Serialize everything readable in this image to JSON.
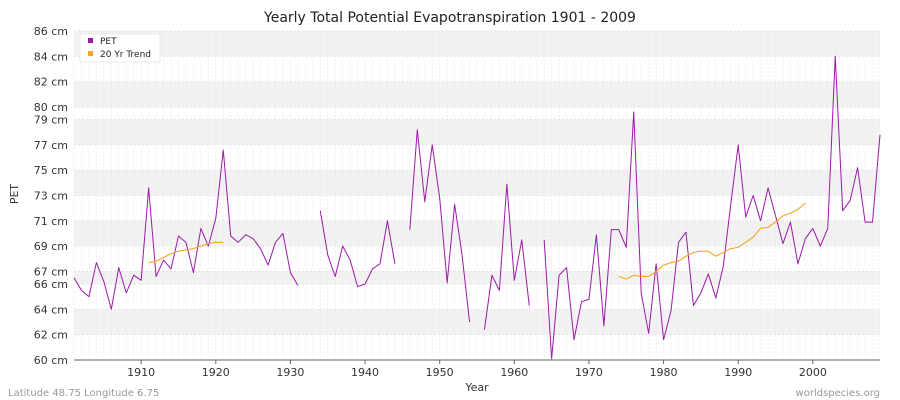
{
  "chart_data": {
    "type": "line",
    "title": "Yearly Total Potential Evapotranspiration 1901 - 2009",
    "xlabel": "Year",
    "ylabel": "PET",
    "xlim": [
      1901,
      2009
    ],
    "ylim": [
      60,
      86
    ],
    "x_ticks": [
      1910,
      1920,
      1930,
      1940,
      1950,
      1960,
      1970,
      1980,
      1990,
      2000
    ],
    "y_ticks": [
      {
        "v": 60,
        "label": "60 cm"
      },
      {
        "v": 62,
        "label": "62 cm"
      },
      {
        "v": 64,
        "label": "64 cm"
      },
      {
        "v": 66,
        "label": "66 cm"
      },
      {
        "v": 67,
        "label": "67 cm"
      },
      {
        "v": 69,
        "label": "69 cm"
      },
      {
        "v": 71,
        "label": "71 cm"
      },
      {
        "v": 73,
        "label": "73 cm"
      },
      {
        "v": 75,
        "label": "75 cm"
      },
      {
        "v": 77,
        "label": "77 cm"
      },
      {
        "v": 79,
        "label": "79 cm"
      },
      {
        "v": 80,
        "label": "80 cm"
      },
      {
        "v": 82,
        "label": "82 cm"
      },
      {
        "v": 84,
        "label": "84 cm"
      },
      {
        "v": 86,
        "label": "86 cm"
      }
    ],
    "legend": [
      {
        "name": "PET",
        "color": "#9b1aa8"
      },
      {
        "name": "20 Yr Trend",
        "color": "#f5a623"
      }
    ],
    "series": [
      {
        "name": "PET",
        "color": "#9b1aa8",
        "points": [
          [
            1901,
            66.5
          ],
          [
            1902,
            65.5
          ],
          [
            1903,
            65.0
          ],
          [
            1904,
            67.7
          ],
          [
            1905,
            66.2
          ],
          [
            1906,
            64.0
          ],
          [
            1907,
            67.3
          ],
          [
            1908,
            65.3
          ],
          [
            1909,
            66.7
          ],
          [
            1910,
            66.3
          ],
          [
            1911,
            73.6
          ],
          [
            1912,
            66.6
          ],
          [
            1913,
            67.9
          ],
          [
            1914,
            67.2
          ],
          [
            1915,
            69.8
          ],
          [
            1916,
            69.3
          ],
          [
            1917,
            66.9
          ],
          [
            1918,
            70.4
          ],
          [
            1919,
            69.0
          ],
          [
            1920,
            71.2
          ],
          [
            1921,
            76.6
          ],
          [
            1922,
            69.8
          ],
          [
            1923,
            69.3
          ],
          [
            1924,
            69.9
          ],
          [
            1925,
            69.6
          ],
          [
            1926,
            68.8
          ],
          [
            1927,
            67.5
          ],
          [
            1928,
            69.3
          ],
          [
            1929,
            70.0
          ],
          [
            1930,
            66.9
          ],
          [
            1931,
            65.9
          ],
          [
            1932,
            null
          ],
          [
            1933,
            null
          ],
          [
            1934,
            71.8
          ],
          [
            1935,
            68.3
          ],
          [
            1936,
            66.6
          ],
          [
            1937,
            69.0
          ],
          [
            1938,
            67.9
          ],
          [
            1939,
            65.8
          ],
          [
            1940,
            66.0
          ],
          [
            1941,
            67.2
          ],
          [
            1942,
            67.6
          ],
          [
            1943,
            71.0
          ],
          [
            1944,
            67.6
          ],
          [
            1945,
            null
          ],
          [
            1946,
            70.3
          ],
          [
            1947,
            78.2
          ],
          [
            1948,
            72.5
          ],
          [
            1949,
            77.0
          ],
          [
            1950,
            72.8
          ],
          [
            1951,
            66.1
          ],
          [
            1952,
            72.3
          ],
          [
            1953,
            68.3
          ],
          [
            1954,
            63.0
          ],
          [
            1955,
            null
          ],
          [
            1956,
            62.4
          ],
          [
            1957,
            66.7
          ],
          [
            1958,
            65.5
          ],
          [
            1959,
            73.9
          ],
          [
            1960,
            66.3
          ],
          [
            1961,
            69.5
          ],
          [
            1962,
            64.3
          ],
          [
            1963,
            null
          ],
          [
            1964,
            69.5
          ],
          [
            1965,
            60.1
          ],
          [
            1966,
            66.7
          ],
          [
            1967,
            67.3
          ],
          [
            1968,
            61.6
          ],
          [
            1969,
            64.6
          ],
          [
            1970,
            64.8
          ],
          [
            1971,
            69.9
          ],
          [
            1972,
            62.7
          ],
          [
            1973,
            70.3
          ],
          [
            1974,
            70.3
          ],
          [
            1975,
            68.9
          ],
          [
            1976,
            79.6
          ],
          [
            1977,
            65.3
          ],
          [
            1978,
            62.1
          ],
          [
            1979,
            67.6
          ],
          [
            1980,
            61.6
          ],
          [
            1981,
            63.9
          ],
          [
            1982,
            69.3
          ],
          [
            1983,
            70.1
          ],
          [
            1984,
            64.3
          ],
          [
            1985,
            65.3
          ],
          [
            1986,
            66.8
          ],
          [
            1987,
            64.9
          ],
          [
            1988,
            67.4
          ],
          [
            1989,
            72.3
          ],
          [
            1990,
            77.0
          ],
          [
            1991,
            71.3
          ],
          [
            1992,
            73.0
          ],
          [
            1993,
            71.0
          ],
          [
            1994,
            73.6
          ],
          [
            1995,
            71.4
          ],
          [
            1996,
            69.2
          ],
          [
            1997,
            70.9
          ],
          [
            1998,
            67.6
          ],
          [
            1999,
            69.6
          ],
          [
            2000,
            70.4
          ],
          [
            2001,
            69.0
          ],
          [
            2002,
            70.4
          ],
          [
            2003,
            84.0
          ],
          [
            2004,
            71.8
          ],
          [
            2005,
            72.6
          ],
          [
            2006,
            75.2
          ],
          [
            2007,
            70.9
          ],
          [
            2008,
            70.9
          ],
          [
            2009,
            77.8
          ]
        ]
      },
      {
        "name": "20 Yr Trend",
        "color": "#f5a623",
        "points": [
          [
            1911,
            67.7
          ],
          [
            1912,
            67.8
          ],
          [
            1913,
            68.1
          ],
          [
            1914,
            68.4
          ],
          [
            1915,
            68.6
          ],
          [
            1916,
            68.7
          ],
          [
            1917,
            68.8
          ],
          [
            1918,
            69.0
          ],
          [
            1919,
            69.2
          ],
          [
            1920,
            69.3
          ],
          [
            1921,
            69.3
          ],
          [
            1974,
            66.6
          ],
          [
            1975,
            66.4
          ],
          [
            1976,
            66.7
          ],
          [
            1977,
            66.6
          ],
          [
            1978,
            66.6
          ],
          [
            1979,
            67.0
          ],
          [
            1980,
            67.5
          ],
          [
            1981,
            67.7
          ],
          [
            1982,
            67.8
          ],
          [
            1983,
            68.2
          ],
          [
            1984,
            68.5
          ],
          [
            1985,
            68.6
          ],
          [
            1986,
            68.6
          ],
          [
            1987,
            68.2
          ],
          [
            1988,
            68.5
          ],
          [
            1989,
            68.8
          ],
          [
            1990,
            68.9
          ],
          [
            1991,
            69.3
          ],
          [
            1992,
            69.7
          ],
          [
            1993,
            70.4
          ],
          [
            1994,
            70.5
          ],
          [
            1995,
            70.9
          ],
          [
            1996,
            71.4
          ],
          [
            1997,
            71.6
          ],
          [
            1998,
            71.9
          ],
          [
            1999,
            72.4
          ]
        ]
      }
    ]
  },
  "footer": {
    "left": "Latitude 48.75 Longitude 6.75",
    "right": "worldspecies.org"
  }
}
